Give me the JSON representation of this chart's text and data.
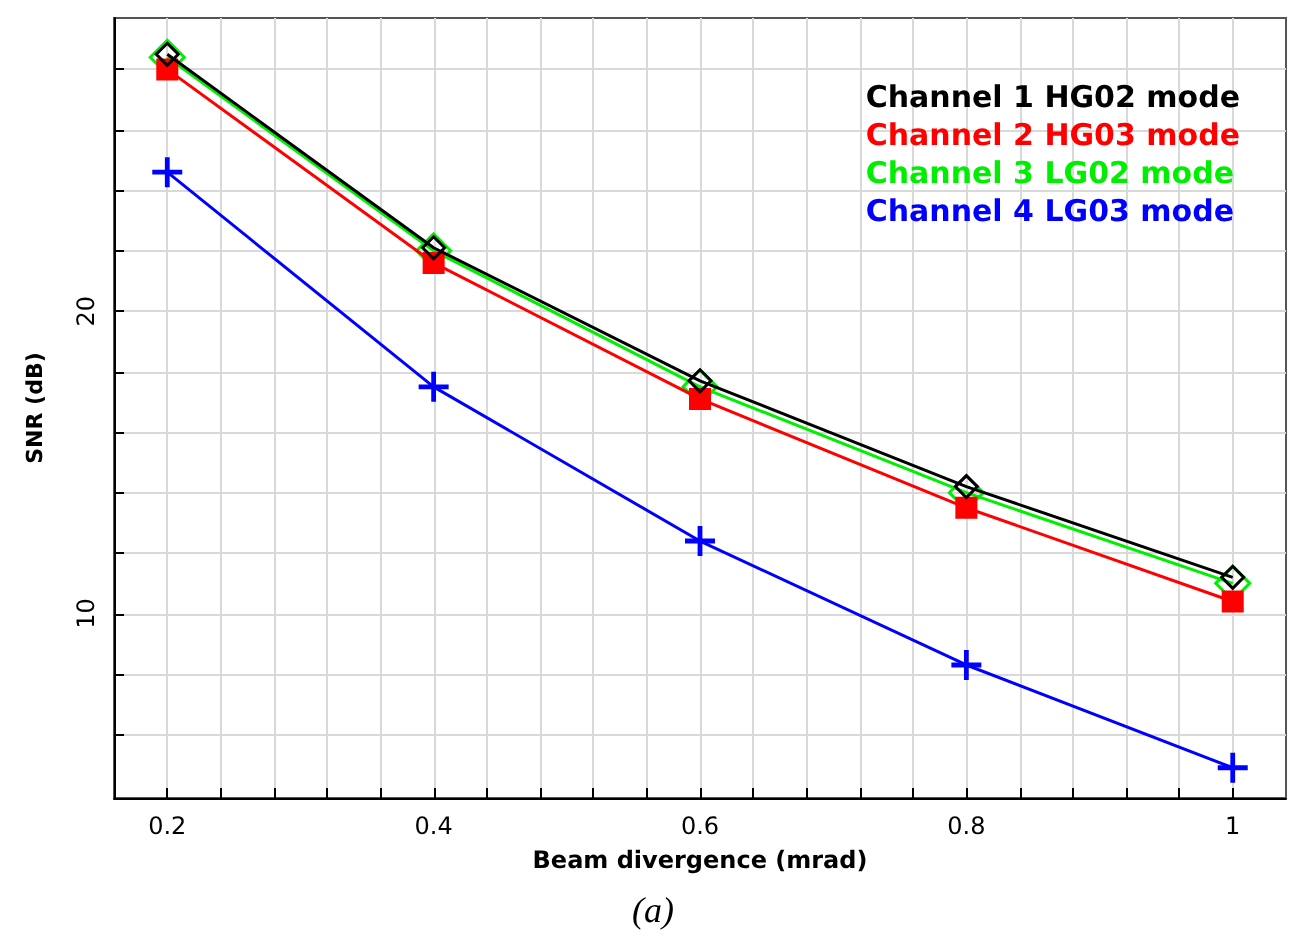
{
  "chart_data": {
    "type": "line",
    "xlabel": "Beam divergence (mrad)",
    "ylabel": "SNR (dB)",
    "x": [
      0.2,
      0.4,
      0.6,
      0.8,
      1
    ],
    "series": [
      {
        "name": "Channel 1 HG02 mode",
        "color": "#000000",
        "marker": "diamond",
        "values": [
          28.5,
          22.1,
          17.7,
          14.2,
          11.2
        ]
      },
      {
        "name": "Channel 2 HG03 mode",
        "color": "#ff0000",
        "marker": "square",
        "values": [
          28.0,
          21.6,
          17.1,
          13.5,
          10.4
        ]
      },
      {
        "name": "Channel 3 LG02 mode",
        "color": "#00ee00",
        "marker": "diamond",
        "values": [
          28.4,
          22.0,
          17.5,
          14.0,
          11.0
        ]
      },
      {
        "name": "Channel 4 LG03 mode",
        "color": "#0000ff",
        "marker": "cross",
        "values": [
          24.6,
          17.5,
          12.4,
          8.3,
          4.9
        ]
      }
    ],
    "xlim": [
      0.16,
      1.04
    ],
    "xticks": [
      {
        "value": 0.16,
        "label": null
      },
      0.2,
      {
        "value": 0.24,
        "label": null
      },
      {
        "value": 0.28,
        "label": null
      },
      {
        "value": 0.32,
        "label": null
      },
      {
        "value": 0.36,
        "label": null
      },
      0.4,
      {
        "value": 0.44,
        "label": null
      },
      {
        "value": 0.48,
        "label": null
      },
      {
        "value": 0.52,
        "label": null
      },
      {
        "value": 0.56,
        "label": null
      },
      0.6,
      {
        "value": 0.64,
        "label": null
      },
      {
        "value": 0.68,
        "label": null
      },
      {
        "value": 0.72,
        "label": null
      },
      {
        "value": 0.76,
        "label": null
      },
      0.8,
      {
        "value": 0.84,
        "label": null
      },
      {
        "value": 0.88,
        "label": null
      },
      {
        "value": 0.92,
        "label": null
      },
      {
        "value": 0.96,
        "label": null
      },
      1
    ],
    "ylim": [
      3.9,
      29.7
    ],
    "yticks": [
      {
        "value": 6,
        "label": null
      },
      {
        "value": 8,
        "label": null
      },
      10,
      {
        "value": 12,
        "label": null
      },
      {
        "value": 14,
        "label": null
      },
      {
        "value": 16,
        "label": null
      },
      {
        "value": 18,
        "label": null
      },
      20,
      {
        "value": 22,
        "label": null
      },
      {
        "value": 24,
        "label": null
      },
      {
        "value": 26,
        "label": null
      },
      {
        "value": 28,
        "label": null
      }
    ],
    "grid": true,
    "legend": "top right",
    "line_style": "solid",
    "annotations": [
      "(a)"
    ]
  }
}
